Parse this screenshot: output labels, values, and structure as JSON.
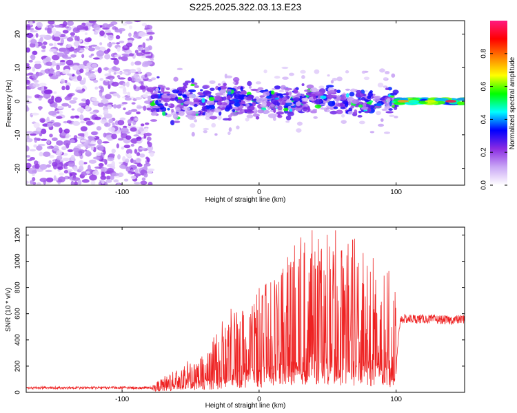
{
  "title": "S225.2025.322.03.13.E23",
  "chart_data": [
    {
      "type": "heatmap",
      "name": "spectrogram",
      "xlabel": "Height of straight line (km)",
      "ylabel": "Frequency (Hz)",
      "xlim": [
        -170,
        150
      ],
      "ylim": [
        -25,
        24
      ],
      "xticks": [
        -100,
        0,
        100
      ],
      "yticks": [
        -20,
        -10,
        0,
        10,
        20
      ],
      "colorbar": {
        "label": "Normalized spectral amplitude",
        "range": [
          0,
          1
        ],
        "ticks": [
          "0.0",
          "0.2",
          "0.4",
          "0.6",
          "0.8"
        ],
        "colors": [
          "#ffffff",
          "#c9a6f5",
          "#8a2be2",
          "#0000ff",
          "#00ffff",
          "#00ff00",
          "#ffff00",
          "#ff8000",
          "#ff0000",
          "#ff1a80"
        ]
      },
      "regions": [
        {
          "description": "broadband noise",
          "x_range": [
            -170,
            -78
          ],
          "f_range": [
            -25,
            24
          ],
          "amplitude": 0.2
        },
        {
          "description": "signal band",
          "x_range": [
            -78,
            100
          ],
          "f_center": 0,
          "f_halfwidth": 5,
          "amplitude": 0.35
        },
        {
          "description": "strong narrowband",
          "x_range": [
            100,
            150
          ],
          "f_center": 0,
          "amplitude": 0.95
        }
      ]
    },
    {
      "type": "line",
      "name": "snr",
      "xlabel": "Height of straight line (km)",
      "ylabel": "SNR (10 * v/v)",
      "xlim": [
        -170,
        150
      ],
      "ylim": [
        0,
        1260
      ],
      "xticks": [
        -100,
        0,
        100
      ],
      "yticks": [
        0,
        200,
        400,
        600,
        800,
        1000,
        1200
      ],
      "color": "#ee2222",
      "envelope": {
        "x": [
          -170,
          -78,
          -65,
          -52,
          -40,
          -30,
          -20,
          -10,
          0,
          10,
          20,
          30,
          40,
          50,
          60,
          70,
          80,
          90,
          100,
          103,
          120,
          140,
          150
        ],
        "base": [
          30,
          30,
          50,
          80,
          100,
          110,
          150,
          170,
          200,
          220,
          230,
          240,
          250,
          260,
          240,
          250,
          230,
          200,
          180,
          560,
          560,
          550,
          560
        ],
        "peak": [
          50,
          50,
          160,
          240,
          280,
          520,
          650,
          700,
          800,
          900,
          1100,
          1200,
          1250,
          1230,
          1250,
          1200,
          1150,
          1080,
          1000,
          600,
          620,
          600,
          620
        ]
      }
    }
  ]
}
